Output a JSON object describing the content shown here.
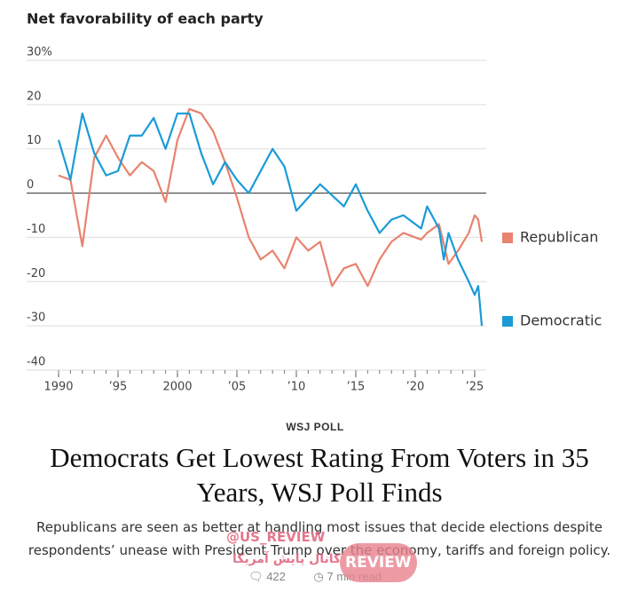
{
  "chart_data": {
    "type": "line",
    "title": "Net favorability of each party",
    "ylim": [
      -40,
      30
    ],
    "yticks": [
      {
        "value": 30,
        "label": "30%"
      },
      20,
      10,
      0,
      -10,
      -20,
      -30,
      -40
    ],
    "xlim": [
      1990,
      2025.6
    ],
    "xticks": [
      1990,
      {
        "value": 1995,
        "label": "’95"
      },
      2000,
      {
        "value": 2005,
        "label": "’05"
      },
      {
        "value": 2010,
        "label": "’10"
      },
      {
        "value": 2015,
        "label": "’15"
      },
      {
        "value": 2020,
        "label": "’20"
      },
      {
        "value": 2025,
        "label": "’25"
      }
    ],
    "grid": true,
    "series": [
      {
        "name": "Republican",
        "color": "#e8836e",
        "x": [
          1990,
          1991,
          1992,
          1993,
          1994,
          1995,
          1996,
          1997,
          1998,
          1999,
          2000,
          2001,
          2002,
          2003,
          2004,
          2005,
          2006,
          2007,
          2008,
          2009,
          2010,
          2011,
          2012,
          2013,
          2014,
          2015,
          2016,
          2017,
          2018,
          2019,
          2020.5,
          2021,
          2022,
          2022.8,
          2023.6,
          2024.5,
          2025,
          2025.3,
          2025.6
        ],
        "values": [
          4,
          3,
          -12,
          8,
          13,
          8,
          4,
          7,
          5,
          -2,
          12,
          19,
          18,
          14,
          7,
          -1,
          -10,
          -15,
          -13,
          -17,
          -10,
          -13,
          -11,
          -21,
          -17,
          -16,
          -21,
          -15,
          -11,
          -9,
          -10.5,
          -9,
          -7,
          -16,
          -13,
          -9,
          -5,
          -6,
          -11
        ]
      },
      {
        "name": "Democratic",
        "color": "#1a9bd7",
        "x": [
          1990,
          1991,
          1992,
          1993,
          1994,
          1995,
          1996,
          1997,
          1998,
          1999,
          2000,
          2001,
          2002,
          2003,
          2004,
          2005,
          2006,
          2008,
          2009,
          2010,
          2012,
          2014,
          2015,
          2016,
          2017,
          2018,
          2019,
          2020.5,
          2021,
          2022,
          2022.4,
          2022.8,
          2023.6,
          2024.5,
          2025,
          2025.3,
          2025.6
        ],
        "values": [
          12,
          3,
          18,
          9,
          4,
          5,
          13,
          13,
          17,
          10,
          18,
          18,
          9,
          2,
          7,
          3,
          0,
          10,
          6,
          -4,
          2,
          -3,
          2,
          -4,
          -9,
          -6,
          -5,
          -8,
          -3,
          -8,
          -15,
          -9,
          -15,
          -20,
          -23,
          -21,
          -30
        ]
      }
    ]
  },
  "article": {
    "kicker": "WSJ POLL",
    "headline": "Democrats Get Lowest Rating From Voters in 35 Years, WSJ Poll Finds",
    "dek": "Republicans are seen as better at handling most issues that decide elections despite respondents’ unease with President Trump over the economy, tariffs and foreign policy.",
    "comments": "422",
    "read_time": "7 min read"
  },
  "watermark": {
    "handle": "@US_REVIEW",
    "channel": "کانال پایش آمریکا",
    "logo": "REVIEW"
  }
}
